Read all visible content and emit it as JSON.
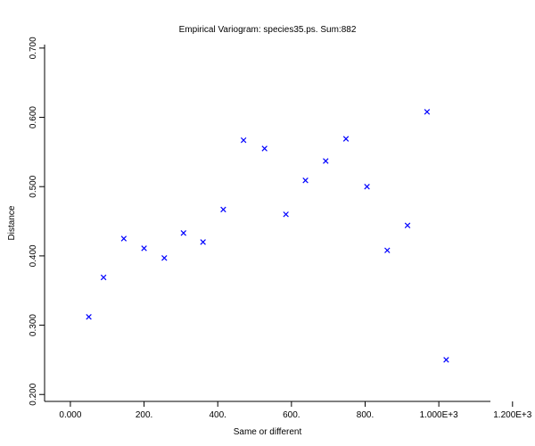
{
  "chart_data": {
    "type": "scatter",
    "title": "Empirical Variogram: species35.ps. Sum:882",
    "xlabel": "Same or different",
    "ylabel": "Distance",
    "xlim": [
      -70,
      1140
    ],
    "ylim": [
      0.19,
      0.705
    ],
    "x_ticks": [
      {
        "value": 0,
        "label": "0.000"
      },
      {
        "value": 200,
        "label": "200."
      },
      {
        "value": 400,
        "label": "400."
      },
      {
        "value": 600,
        "label": "600."
      },
      {
        "value": 800,
        "label": "800."
      },
      {
        "value": 1000,
        "label": "1.000E+3"
      },
      {
        "value": 1200,
        "label": "1.200E+3"
      }
    ],
    "y_ticks": [
      {
        "value": 0.2,
        "label": "0.200"
      },
      {
        "value": 0.3,
        "label": "0.300"
      },
      {
        "value": 0.4,
        "label": "0.400"
      },
      {
        "value": 0.5,
        "label": "0.500"
      },
      {
        "value": 0.6,
        "label": "0.600"
      },
      {
        "value": 0.7,
        "label": "0.700"
      }
    ],
    "marker_color": "#0000ff",
    "marker": "x",
    "grid": false,
    "points": [
      {
        "x": 50,
        "y": 0.312
      },
      {
        "x": 90,
        "y": 0.369
      },
      {
        "x": 145,
        "y": 0.425
      },
      {
        "x": 200,
        "y": 0.411
      },
      {
        "x": 255,
        "y": 0.397
      },
      {
        "x": 307,
        "y": 0.433
      },
      {
        "x": 360,
        "y": 0.42
      },
      {
        "x": 415,
        "y": 0.467
      },
      {
        "x": 470,
        "y": 0.567
      },
      {
        "x": 527,
        "y": 0.555
      },
      {
        "x": 585,
        "y": 0.46
      },
      {
        "x": 638,
        "y": 0.509
      },
      {
        "x": 693,
        "y": 0.537
      },
      {
        "x": 748,
        "y": 0.569
      },
      {
        "x": 805,
        "y": 0.5
      },
      {
        "x": 860,
        "y": 0.408
      },
      {
        "x": 915,
        "y": 0.444
      },
      {
        "x": 968,
        "y": 0.608
      },
      {
        "x": 1020,
        "y": 0.25
      }
    ]
  }
}
